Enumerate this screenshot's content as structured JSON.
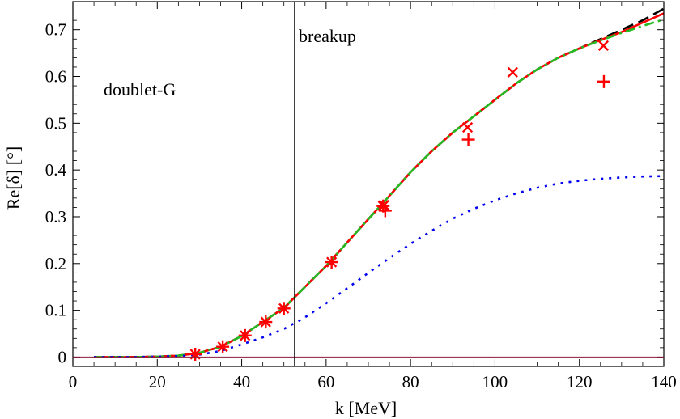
{
  "chart_data": {
    "type": "line",
    "title": "",
    "xlabel": "k [MeV]",
    "ylabel": "Re[δ] [°]",
    "xlim": [
      0,
      140
    ],
    "ylim": [
      -0.02,
      0.76
    ],
    "xticks": [
      0,
      20,
      40,
      60,
      80,
      100,
      120,
      140
    ],
    "yticks": [
      0,
      0.1,
      0.2,
      0.3,
      0.4,
      0.5,
      0.6,
      0.7
    ],
    "xtick_labels": [
      "0",
      "20",
      "40",
      "60",
      "80",
      "100",
      "120",
      "140"
    ],
    "ytick_labels": [
      "0",
      "0.1",
      "0.2",
      "0.3",
      "0.4",
      "0.5",
      "0.6",
      "0.7"
    ],
    "grid": false,
    "annotations": {
      "label": "doublet-G",
      "breakup_label": "breakup",
      "breakup_k": 52.5
    },
    "zero_line": {
      "y": 0,
      "color": "#8b1a3a"
    },
    "series": [
      {
        "name": "black-dashed",
        "color": "#000000",
        "style": "dashed",
        "x": [
          5,
          10,
          15,
          20,
          25,
          30,
          35,
          40,
          45,
          50,
          55,
          60,
          65,
          70,
          75,
          80,
          85,
          90,
          95,
          100,
          105,
          110,
          115,
          120,
          125,
          130,
          135,
          140
        ],
        "y": [
          0,
          0,
          0,
          0.001,
          0.003,
          0.009,
          0.022,
          0.045,
          0.075,
          0.105,
          0.15,
          0.195,
          0.245,
          0.295,
          0.345,
          0.395,
          0.44,
          0.48,
          0.515,
          0.55,
          0.585,
          0.615,
          0.64,
          0.66,
          0.68,
          0.7,
          0.72,
          0.745
        ]
      },
      {
        "name": "red-solid",
        "color": "#ff0000",
        "style": "solid",
        "x": [
          5,
          10,
          15,
          20,
          25,
          30,
          35,
          40,
          45,
          50,
          55,
          60,
          65,
          70,
          75,
          80,
          85,
          90,
          95,
          100,
          105,
          110,
          115,
          120,
          125,
          130,
          135,
          140
        ],
        "y": [
          0,
          0,
          0,
          0.001,
          0.003,
          0.009,
          0.022,
          0.045,
          0.075,
          0.105,
          0.15,
          0.195,
          0.245,
          0.295,
          0.345,
          0.395,
          0.44,
          0.48,
          0.515,
          0.55,
          0.585,
          0.615,
          0.64,
          0.66,
          0.678,
          0.695,
          0.715,
          0.735
        ]
      },
      {
        "name": "green-dashdot",
        "color": "#22bb22",
        "style": "dashdot",
        "x": [
          5,
          10,
          15,
          20,
          25,
          30,
          35,
          40,
          45,
          50,
          55,
          60,
          65,
          70,
          75,
          80,
          85,
          90,
          95,
          100,
          105,
          110,
          115,
          120,
          125,
          130,
          135,
          140
        ],
        "y": [
          0,
          0,
          0,
          0.001,
          0.003,
          0.009,
          0.022,
          0.045,
          0.075,
          0.105,
          0.15,
          0.195,
          0.245,
          0.295,
          0.345,
          0.395,
          0.44,
          0.48,
          0.515,
          0.55,
          0.585,
          0.615,
          0.64,
          0.66,
          0.677,
          0.693,
          0.708,
          0.722
        ]
      },
      {
        "name": "blue-dotted",
        "color": "#0000ee",
        "style": "dotted",
        "x": [
          5,
          15,
          25,
          30,
          35,
          40,
          45,
          50,
          55,
          60,
          65,
          70,
          75,
          80,
          85,
          90,
          95,
          100,
          105,
          110,
          115,
          120,
          125,
          130,
          135,
          140
        ],
        "y": [
          0,
          0,
          0.002,
          0.005,
          0.013,
          0.027,
          0.042,
          0.06,
          0.085,
          0.115,
          0.147,
          0.18,
          0.212,
          0.242,
          0.27,
          0.296,
          0.317,
          0.335,
          0.35,
          0.362,
          0.371,
          0.377,
          0.381,
          0.384,
          0.386,
          0.387
        ]
      }
    ],
    "markers": [
      {
        "name": "stars",
        "symbol": "asterisk",
        "color": "#ff0000",
        "points": [
          [
            29,
            0.006
          ],
          [
            35.5,
            0.022
          ],
          [
            40.8,
            0.046
          ],
          [
            45.7,
            0.075
          ],
          [
            50,
            0.104
          ],
          [
            61.3,
            0.203
          ],
          [
            73.5,
            0.323
          ]
        ]
      },
      {
        "name": "crosses",
        "symbol": "x",
        "color": "#ff0000",
        "points": [
          [
            73.7,
            0.325
          ],
          [
            93.5,
            0.491
          ],
          [
            104.2,
            0.609
          ],
          [
            125.7,
            0.666
          ]
        ]
      },
      {
        "name": "plus",
        "symbol": "plus",
        "color": "#ff0000",
        "points": [
          [
            74,
            0.313
          ],
          [
            93.7,
            0.465
          ],
          [
            125.8,
            0.589
          ]
        ]
      }
    ]
  }
}
